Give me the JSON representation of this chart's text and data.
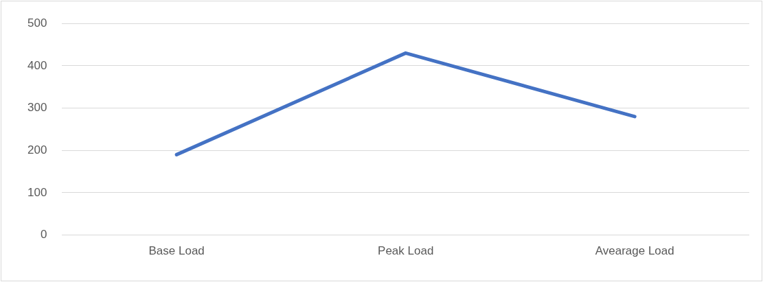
{
  "chart_data": {
    "type": "line",
    "categories": [
      "Base Load",
      "Peak Load",
      "Avearage Load"
    ],
    "series": [
      {
        "color": "#4472c4",
        "values": [
          190,
          430,
          280
        ]
      }
    ],
    "ylim": [
      0,
      500
    ],
    "yticks": [
      0,
      100,
      200,
      300,
      400,
      500
    ],
    "grid": "y",
    "legend": false,
    "marker": "none",
    "line_style": "solid"
  }
}
